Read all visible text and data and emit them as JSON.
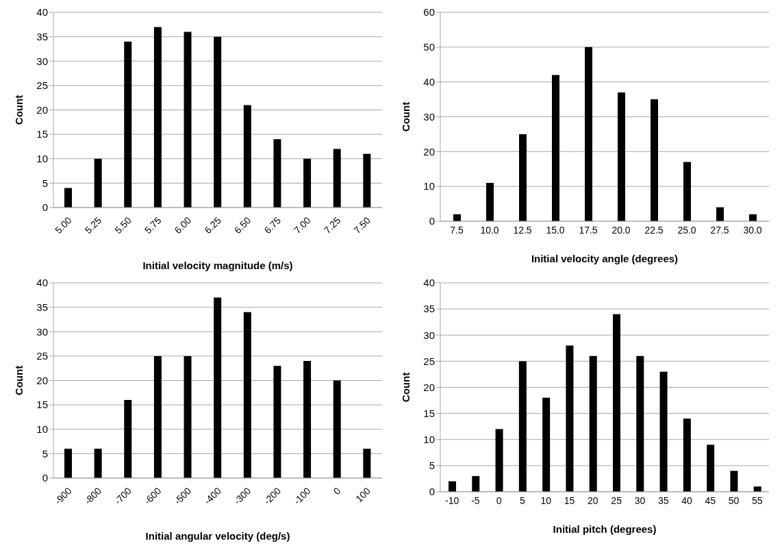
{
  "chart_data": [
    {
      "type": "bar",
      "categories": [
        "5.00",
        "5.25",
        "5.50",
        "5.75",
        "6.00",
        "6.25",
        "6.50",
        "6.75",
        "7.00",
        "7.25",
        "7.50"
      ],
      "values": [
        4,
        10,
        34,
        37,
        36,
        35,
        21,
        14,
        10,
        12,
        11
      ],
      "color": "#000000",
      "xlabel": "Initial velocity magnitude (m/s)",
      "ylabel": "Count",
      "ylim": [
        0,
        40
      ],
      "yticks": [
        0,
        5,
        10,
        15,
        20,
        25,
        30,
        35,
        40
      ],
      "grid": "y",
      "legend": false
    },
    {
      "type": "bar",
      "categories": [
        "7.5",
        "10.0",
        "12.5",
        "15.0",
        "17.5",
        "20.0",
        "22.5",
        "25.0",
        "27.5",
        "30.0"
      ],
      "values": [
        2,
        11,
        25,
        42,
        50,
        37,
        35,
        17,
        4,
        2
      ],
      "color": "#000000",
      "xlabel": "Initial velocity angle (degrees)",
      "ylabel": "Count",
      "ylim": [
        0,
        60
      ],
      "yticks": [
        0,
        10,
        20,
        30,
        40,
        50,
        60
      ],
      "grid": "y",
      "legend": false
    },
    {
      "type": "bar",
      "categories": [
        "-900",
        "-800",
        "-700",
        "-600",
        "-500",
        "-400",
        "-300",
        "-200",
        "-100",
        "0",
        "100"
      ],
      "values": [
        6,
        6,
        16,
        25,
        25,
        37,
        34,
        23,
        24,
        20,
        6
      ],
      "color": "#000000",
      "xlabel": "Initial angular velocity (deg/s)",
      "ylabel": "Count",
      "ylim": [
        0,
        40
      ],
      "yticks": [
        0,
        5,
        10,
        15,
        20,
        25,
        30,
        35,
        40
      ],
      "grid": "y",
      "legend": false
    },
    {
      "type": "bar",
      "categories": [
        "-10",
        "-5",
        "0",
        "5",
        "10",
        "15",
        "20",
        "25",
        "30",
        "35",
        "40",
        "45",
        "50",
        "55"
      ],
      "values": [
        2,
        3,
        12,
        25,
        18,
        28,
        26,
        34,
        26,
        23,
        14,
        9,
        4,
        1
      ],
      "color": "#000000",
      "xlabel": "Initial pitch (degrees)",
      "ylabel": "Count",
      "ylim": [
        0,
        40
      ],
      "yticks": [
        0,
        5,
        10,
        15,
        20,
        25,
        30,
        35,
        40
      ],
      "grid": "y",
      "legend": false
    }
  ]
}
